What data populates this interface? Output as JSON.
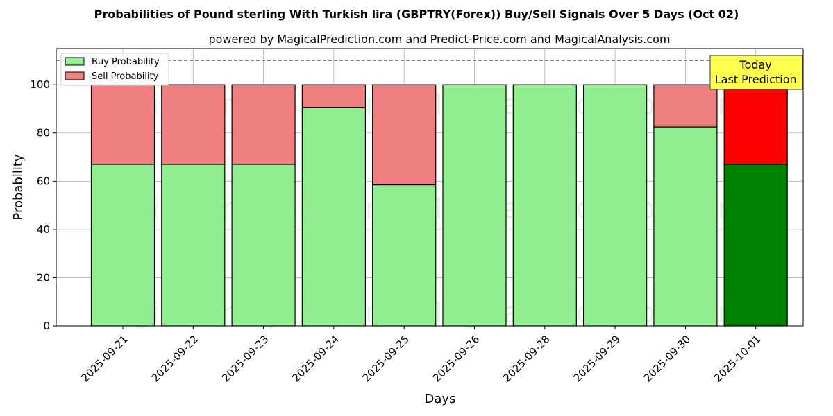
{
  "chart_data": {
    "type": "bar",
    "stacked": true,
    "title": "Probabilities of Pound sterling With Turkish lira (GBPTRY(Forex)) Buy/Sell Signals Over 5 Days (Oct 02)",
    "subtitle": "powered by MagicalPrediction.com and Predict-Price.com and MagicalAnalysis.com",
    "xlabel": "Days",
    "ylabel": "Probability",
    "ylim": [
      0,
      115
    ],
    "yticks": [
      0,
      20,
      40,
      60,
      80,
      100
    ],
    "grid": true,
    "legend_position": "upper-left",
    "reference_line": 110,
    "categories": [
      "2025-09-21",
      "2025-09-22",
      "2025-09-23",
      "2025-09-24",
      "2025-09-25",
      "2025-09-26",
      "2025-09-28",
      "2025-09-29",
      "2025-09-30",
      "2025-10-01"
    ],
    "series": [
      {
        "name": "Buy Probability",
        "color": "#90ee90",
        "highlight_color": "#008000",
        "values": [
          67,
          67,
          67,
          90.5,
          58.5,
          100,
          100,
          100,
          82.5,
          67
        ]
      },
      {
        "name": "Sell Probability",
        "color": "#f08080",
        "highlight_color": "#ff0000",
        "values": [
          33,
          33,
          33,
          9.5,
          41.5,
          0,
          0,
          0,
          17.5,
          33
        ]
      }
    ],
    "highlight_category": "2025-10-01",
    "annotation": {
      "lines": [
        "Today",
        "Last Prediction"
      ],
      "background": "#ffff4d"
    },
    "watermarks": [
      "MagicalAnalysis.com",
      "MagicalPrediction.com"
    ]
  }
}
